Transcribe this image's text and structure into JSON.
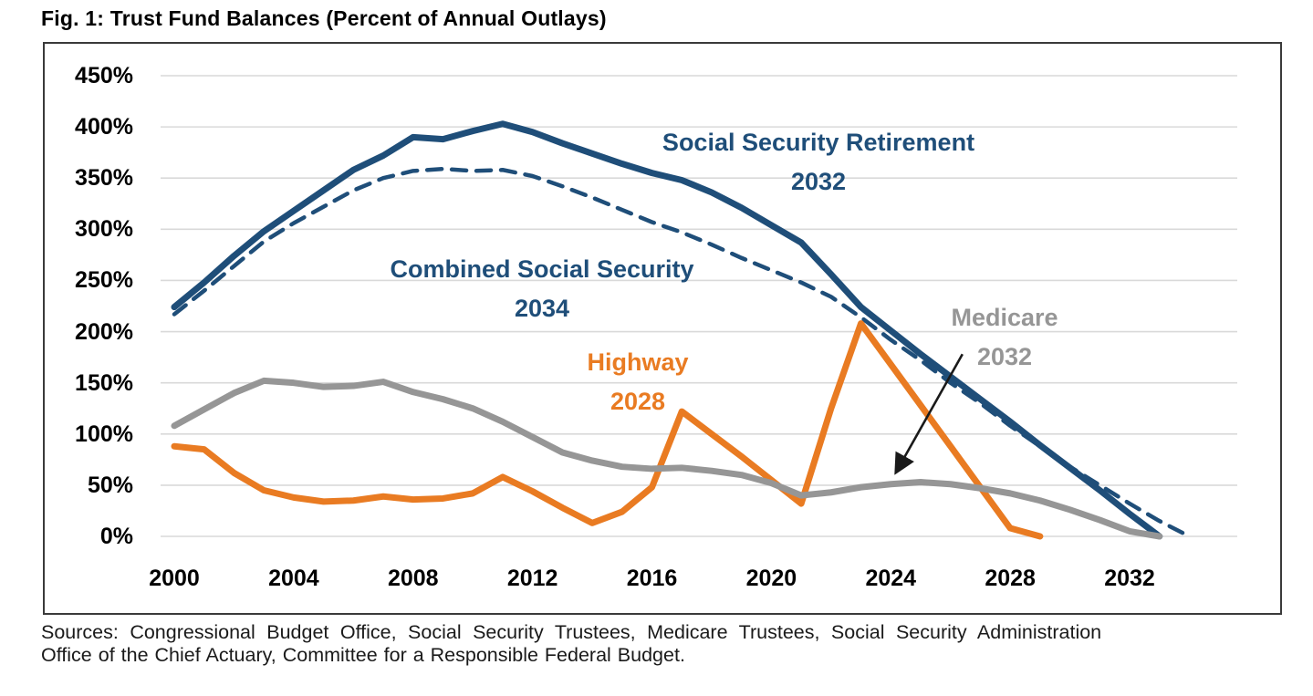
{
  "title": "Fig. 1: Trust Fund Balances (Percent of Annual Outlays)",
  "sources": {
    "line1": "Sources: Congressional Budget Office, Social Security Trustees, Medicare Trustees, Social Security Administration",
    "line2": "Office of the Chief Actuary, Committee for a Responsible Federal Budget."
  },
  "colors": {
    "navy": "#1f4e79",
    "orange": "#e97b22",
    "gray": "#969696",
    "gridline": "#d9d9d9",
    "box_border": "#3a3a3a",
    "arrow": "#1a1a1a",
    "text": "#000000"
  },
  "chart_data": {
    "type": "line",
    "title": "Fig. 1: Trust Fund Balances (Percent of Annual Outlays)",
    "xlabel": "",
    "ylabel": "Percent of Annual Outlays",
    "ylim": [
      0,
      450
    ],
    "ytick_step": 50,
    "ytick_suffix": "%",
    "xticks": [
      2000,
      2004,
      2008,
      2012,
      2016,
      2020,
      2024,
      2028,
      2032
    ],
    "xlim": [
      1999.5,
      2035
    ],
    "grid": "horizontal-only",
    "legend": "inline-labels",
    "series": [
      {
        "name": "Social Security Retirement",
        "depletion_label": "2032",
        "style": "solid",
        "color": "#1f4e79",
        "x": [
          2000,
          2001,
          2002,
          2003,
          2004,
          2005,
          2006,
          2007,
          2008,
          2009,
          2010,
          2011,
          2012,
          2013,
          2014,
          2015,
          2016,
          2017,
          2018,
          2019,
          2020,
          2021,
          2022,
          2023,
          2024,
          2025,
          2026,
          2027,
          2028,
          2029,
          2030,
          2031,
          2032,
          2033
        ],
        "values": [
          224,
          248,
          274,
          298,
          318,
          338,
          358,
          372,
          390,
          388,
          396,
          403,
          395,
          384,
          374,
          364,
          355,
          348,
          336,
          321,
          304,
          287,
          256,
          224,
          201,
          178,
          156,
          134,
          112,
          89,
          67,
          45,
          22,
          0
        ]
      },
      {
        "name": "Combined Social Security",
        "depletion_label": "2034",
        "style": "dashed",
        "color": "#1f4e79",
        "x": [
          2000,
          2001,
          2002,
          2003,
          2004,
          2005,
          2006,
          2007,
          2008,
          2009,
          2010,
          2011,
          2012,
          2013,
          2014,
          2015,
          2016,
          2017,
          2018,
          2019,
          2020,
          2021,
          2022,
          2023,
          2024,
          2025,
          2026,
          2027,
          2028,
          2029,
          2030,
          2031,
          2032,
          2033,
          2034
        ],
        "values": [
          217,
          240,
          264,
          288,
          306,
          322,
          338,
          350,
          357,
          359,
          357,
          358,
          352,
          342,
          331,
          319,
          307,
          297,
          285,
          272,
          260,
          248,
          234,
          214,
          192,
          172,
          150,
          130,
          108,
          88,
          68,
          50,
          32,
          15,
          0
        ]
      },
      {
        "name": "Highway",
        "depletion_label": "2028",
        "style": "solid",
        "color": "#e97b22",
        "x": [
          2000,
          2001,
          2002,
          2003,
          2004,
          2005,
          2006,
          2007,
          2008,
          2009,
          2010,
          2011,
          2012,
          2013,
          2014,
          2015,
          2016,
          2017,
          2018,
          2019,
          2020,
          2021,
          2022,
          2023,
          2024,
          2025,
          2026,
          2027,
          2028,
          2029
        ],
        "values": [
          88,
          85,
          62,
          45,
          38,
          34,
          35,
          39,
          36,
          37,
          42,
          58,
          44,
          28,
          13,
          24,
          48,
          122,
          100,
          78,
          55,
          32,
          125,
          208,
          168,
          128,
          88,
          48,
          8,
          0
        ]
      },
      {
        "name": "Medicare",
        "depletion_label": "2032",
        "style": "solid",
        "color": "#969696",
        "x": [
          2000,
          2001,
          2002,
          2003,
          2004,
          2005,
          2006,
          2007,
          2008,
          2009,
          2010,
          2011,
          2012,
          2013,
          2014,
          2015,
          2016,
          2017,
          2018,
          2019,
          2020,
          2021,
          2022,
          2023,
          2024,
          2025,
          2026,
          2027,
          2028,
          2029,
          2030,
          2031,
          2032,
          2033
        ],
        "values": [
          108,
          124,
          140,
          152,
          150,
          146,
          147,
          151,
          141,
          134,
          125,
          112,
          97,
          82,
          74,
          68,
          66,
          67,
          64,
          60,
          52,
          40,
          43,
          48,
          51,
          53,
          51,
          47,
          42,
          35,
          26,
          16,
          5,
          0
        ]
      }
    ],
    "annotations": [
      {
        "type": "arrow",
        "target_series": "Medicare",
        "from": {
          "year": 2026.4,
          "value": 178
        },
        "to": {
          "year": 2024.2,
          "value": 64
        }
      }
    ]
  }
}
